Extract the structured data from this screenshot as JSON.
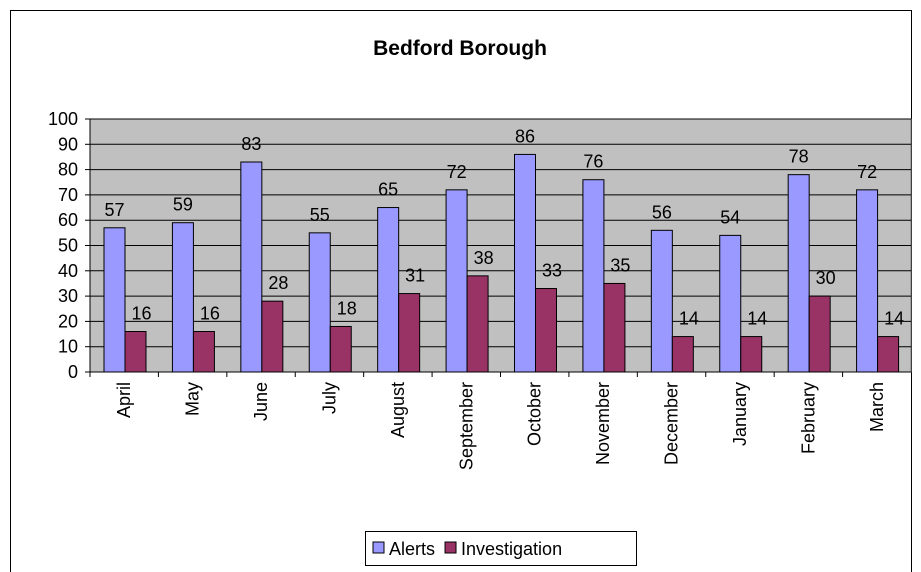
{
  "chart_data": {
    "type": "bar",
    "title": "Bedford Borough",
    "categories": [
      "April",
      "May",
      "June",
      "July",
      "August",
      "September",
      "October",
      "November",
      "December",
      "January",
      "February",
      "March"
    ],
    "series": [
      {
        "name": "Alerts",
        "color": "#9999ff",
        "values": [
          57,
          59,
          83,
          55,
          65,
          72,
          86,
          76,
          56,
          54,
          78,
          72
        ]
      },
      {
        "name": "Investigation",
        "color": "#993366",
        "values": [
          16,
          16,
          28,
          18,
          31,
          38,
          33,
          35,
          14,
          14,
          30,
          14
        ]
      }
    ],
    "ylim": [
      0,
      100
    ],
    "yticks": [
      0,
      10,
      20,
      30,
      40,
      50,
      60,
      70,
      80,
      90,
      100
    ],
    "grid": true,
    "legend": "bottom"
  }
}
